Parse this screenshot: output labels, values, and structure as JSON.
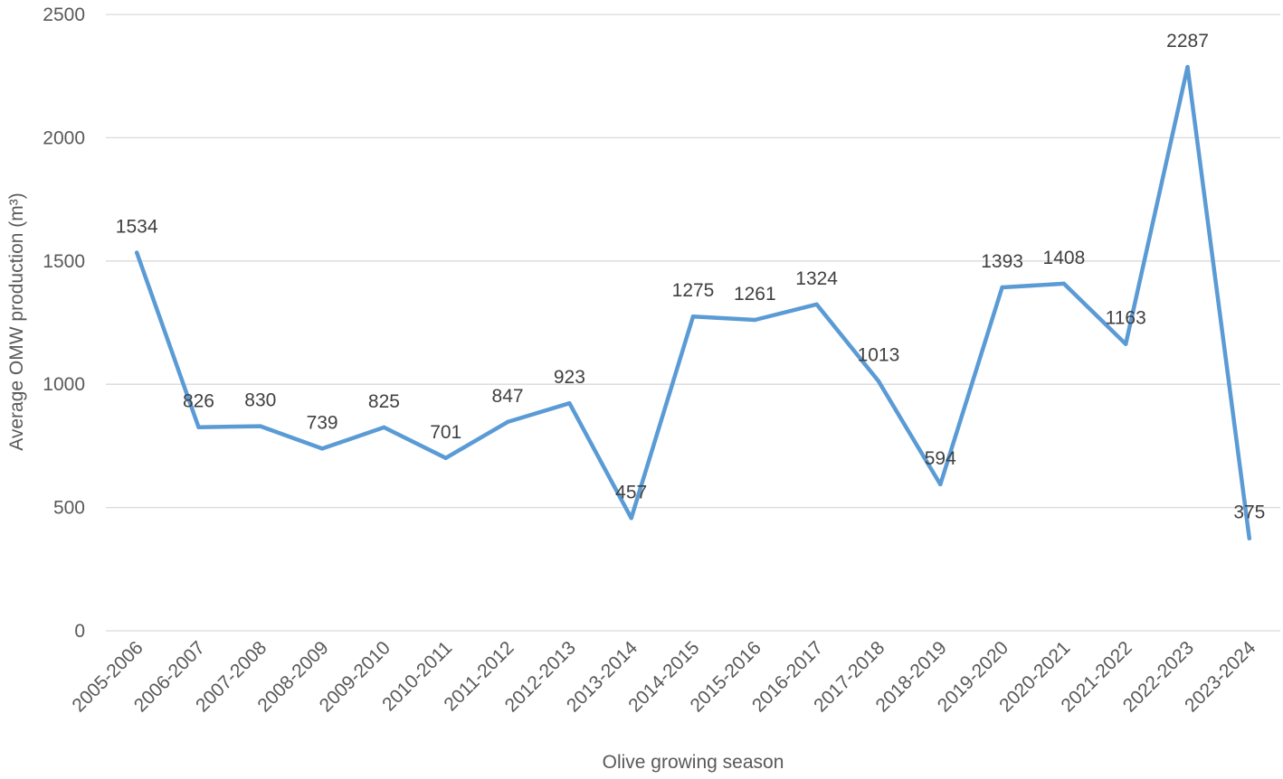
{
  "chart_data": {
    "type": "line",
    "xlabel": "Olive growing season",
    "ylabel": "Average OMW production (m³)",
    "categories": [
      "2005-2006",
      "2006-2007",
      "2007-2008",
      "2008-2009",
      "2009-2010",
      "2010-2011",
      "2011-2012",
      "2012-2013",
      "2013-2014",
      "2014-2015",
      "2015-2016",
      "2016-2017",
      "2017-2018",
      "2018-2019",
      "2019-2020",
      "2020-2021",
      "2021-2022",
      "2022-2023",
      "2023-2024"
    ],
    "series": [
      {
        "values": [
          1534,
          826,
          830,
          739,
          825,
          701,
          847,
          923,
          457,
          1275,
          1261,
          1324,
          1013,
          594,
          1393,
          1408,
          1163,
          2287,
          375
        ],
        "color": "#5b9bd5"
      }
    ],
    "ylim": [
      0,
      2500
    ],
    "yticks": [
      0,
      500,
      1000,
      1500,
      2000,
      2500
    ],
    "grid": true,
    "gridColor": "#d9d9d9"
  }
}
